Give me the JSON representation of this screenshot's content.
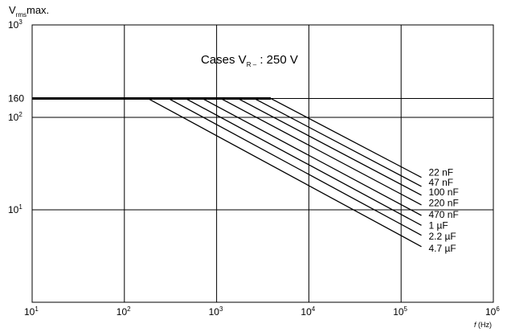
{
  "chart_data": {
    "type": "line",
    "scale": {
      "x": "log",
      "y": "log"
    },
    "xlim": [
      10,
      1000000
    ],
    "ylim": [
      1,
      1000
    ],
    "x_ticks": [
      {
        "value": 10,
        "base": "10",
        "exp": "1"
      },
      {
        "value": 100,
        "base": "10",
        "exp": "2"
      },
      {
        "value": 1000,
        "base": "10",
        "exp": "3"
      },
      {
        "value": 10000,
        "base": "10",
        "exp": "4"
      },
      {
        "value": 100000,
        "base": "10",
        "exp": "5"
      },
      {
        "value": 1000000,
        "base": "10",
        "exp": "6"
      }
    ],
    "y_ticks": [
      {
        "value": 10,
        "base": "10",
        "exp": "1",
        "label": ""
      },
      {
        "value": 100,
        "base": "10",
        "exp": "2",
        "label": ""
      },
      {
        "value": 160,
        "base": "",
        "exp": "",
        "label": "160"
      },
      {
        "value": 1000,
        "base": "10",
        "exp": "3",
        "label": ""
      }
    ],
    "ylabel": {
      "main": "V",
      "sub": "rms",
      "suffix": "max."
    },
    "xlabel": {
      "italic": "f",
      "unit": "(Hz)"
    },
    "annotation": {
      "prefix": "Cases V",
      "sub": "R –",
      "suffix": " : 250 V"
    },
    "grid": true,
    "series": [
      {
        "name": "22 nF",
        "points": [
          [
            1.0,
            160
          ],
          [
            3870,
            160
          ],
          [
            166000,
            22.4
          ]
        ]
      },
      {
        "name": "47 nF",
        "points": [
          [
            1.0,
            160
          ],
          [
            2560,
            160
          ],
          [
            166000,
            17.9
          ]
        ]
      },
      {
        "name": "100 nF",
        "points": [
          [
            1.0,
            160
          ],
          [
            1700,
            160
          ],
          [
            166000,
            14.4
          ]
        ]
      },
      {
        "name": "220 nF",
        "points": [
          [
            1.0,
            160
          ],
          [
            1110,
            160
          ],
          [
            166000,
            11.3
          ]
        ]
      },
      {
        "name": "470 nF",
        "points": [
          [
            1.0,
            160
          ],
          [
            700,
            160
          ],
          [
            166000,
            8.7
          ]
        ]
      },
      {
        "name": "1 µF",
        "points": [
          [
            1.0,
            160
          ],
          [
            460,
            160
          ],
          [
            166000,
            6.8
          ]
        ]
      },
      {
        "name": "2.2 µF",
        "points": [
          [
            1.0,
            160
          ],
          [
            300,
            160
          ],
          [
            166000,
            5.3
          ]
        ]
      },
      {
        "name": "4.7 µF",
        "points": [
          [
            1.0,
            160
          ],
          [
            180,
            160
          ],
          [
            166000,
            4.0
          ]
        ]
      }
    ]
  }
}
